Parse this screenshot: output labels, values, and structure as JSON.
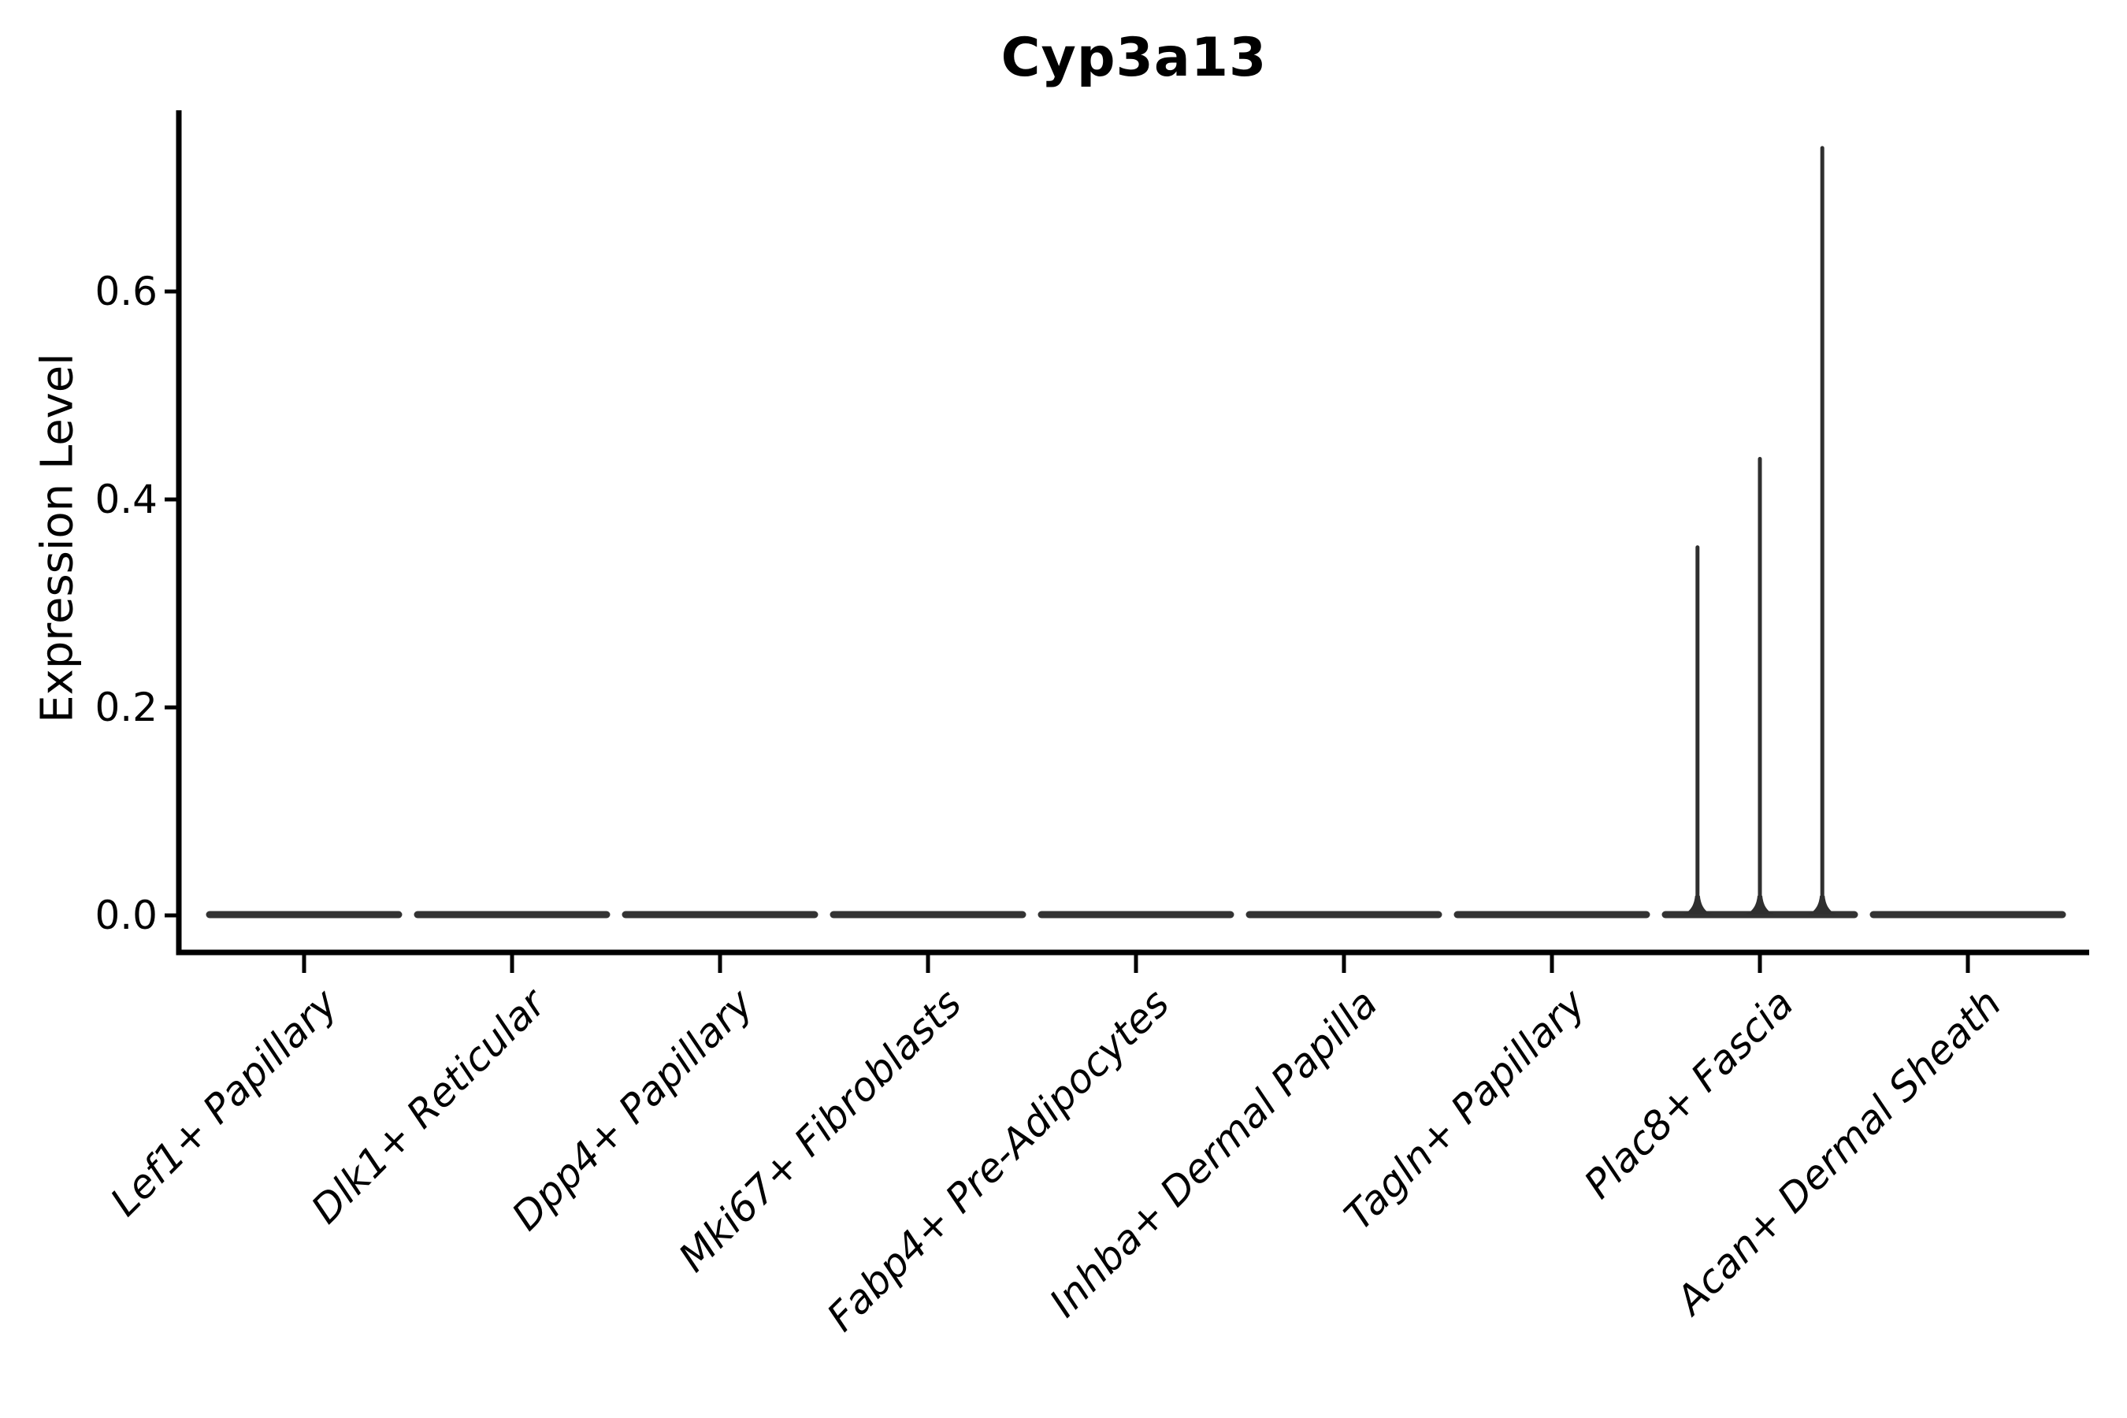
{
  "figure": {
    "title": "Cyp3a13"
  },
  "chart_data": {
    "type": "violin",
    "title": "Cyp3a13",
    "xlabel": "",
    "ylabel": "Expression Level",
    "categories": [
      "Lef1+ Papillary",
      "Dlk1+ Reticular",
      "Dpp4+ Papillary",
      "Mki67+ Fibroblasts",
      "Fabp4+ Pre-Adipocytes",
      "Inhba+ Dermal Papilla",
      "Tagln+ Papillary",
      "Plac8+ Fascia",
      "Acan+ Dermal Sheath"
    ],
    "yticks": [
      {
        "value": 0.0,
        "label": "0.0"
      },
      {
        "value": 0.2,
        "label": "0.2"
      },
      {
        "value": 0.4,
        "label": "0.4"
      },
      {
        "value": 0.6,
        "label": "0.6"
      }
    ],
    "ylim": [
      -0.035,
      0.774
    ],
    "grid": false,
    "legend": null,
    "violins": [
      {
        "category": "Lef1+ Papillary",
        "baseline_value": 0.0,
        "spikes": []
      },
      {
        "category": "Dlk1+ Reticular",
        "baseline_value": 0.0,
        "spikes": []
      },
      {
        "category": "Dpp4+ Papillary",
        "baseline_value": 0.0,
        "spikes": []
      },
      {
        "category": "Mki67+ Fibroblasts",
        "baseline_value": 0.0,
        "spikes": []
      },
      {
        "category": "Fabp4+ Pre-Adipocytes",
        "baseline_value": 0.0,
        "spikes": []
      },
      {
        "category": "Inhba+ Dermal Papilla",
        "baseline_value": 0.0,
        "spikes": []
      },
      {
        "category": "Tagln+ Papillary",
        "baseline_value": 0.0,
        "spikes": []
      },
      {
        "category": "Plac8+ Fascia",
        "baseline_value": 0.0,
        "spikes": [
          {
            "position": -0.3,
            "value": 0.354
          },
          {
            "position": 0.0,
            "value": 0.439
          },
          {
            "position": 0.3,
            "value": 0.738
          }
        ]
      },
      {
        "category": "Acan+ Dermal Sheath",
        "baseline_value": 0.0,
        "spikes": []
      }
    ],
    "colors": {
      "violin": "#333333",
      "spike": "#2f2f2f",
      "axis": "#000000",
      "text": "#000000",
      "background": "#ffffff"
    }
  }
}
